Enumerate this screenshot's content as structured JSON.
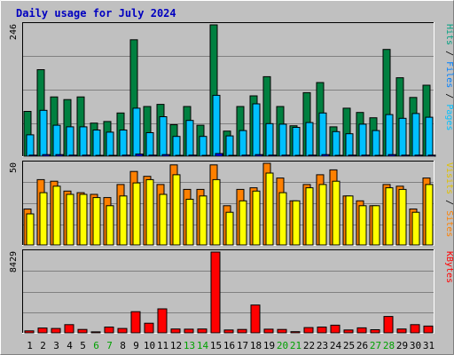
{
  "chart_data": {
    "type": "bar",
    "title": "Daily usage for July 2024",
    "categories": [
      "1",
      "2",
      "3",
      "4",
      "5",
      "6",
      "7",
      "8",
      "9",
      "10",
      "11",
      "12",
      "13",
      "14",
      "15",
      "16",
      "17",
      "18",
      "19",
      "20",
      "21",
      "22",
      "23",
      "24",
      "25",
      "26",
      "27",
      "28",
      "29",
      "30",
      "31"
    ],
    "weekend_days": [
      "6",
      "7",
      "13",
      "14",
      "20",
      "21",
      "27",
      "28"
    ],
    "panels": [
      {
        "id": "hits",
        "max_label": "246",
        "ylim": [
          0,
          246
        ],
        "grid": true,
        "legend": [
          "Pages",
          "Files",
          "Hits"
        ],
        "series": [
          {
            "name": "Hits",
            "color": "#008040",
            "values": [
              84,
              162,
              111,
              106,
              111,
              62,
              65,
              81,
              218,
              93,
              97,
              59,
              93,
              58,
              246,
              47,
              93,
              113,
              149,
              93,
              57,
              119,
              138,
              55,
              90,
              82,
              72,
              200,
              147,
              110,
              133
            ]
          },
          {
            "name": "Files",
            "color": "#00c0ff",
            "values": [
              40,
              86,
              58,
              55,
              55,
              49,
              45,
              49,
              90,
              44,
              74,
              37,
              67,
              37,
              114,
              38,
              48,
              98,
              61,
              60,
              54,
              63,
              81,
              46,
              42,
              60,
              48,
              78,
              71,
              80,
              73
            ]
          },
          {
            "name": "Pages",
            "color": "#0000ff",
            "values": [
              2,
              3,
              3,
              2,
              2,
              1,
              1,
              2,
              4,
              2,
              3,
              1,
              2,
              1,
              5,
              1,
              2,
              3,
              2,
              2,
              1,
              2,
              3,
              1,
              2,
              2,
              1,
              3,
              2,
              2,
              2
            ]
          }
        ]
      },
      {
        "id": "visits",
        "max_label": "50",
        "ylim": [
          0,
          50
        ],
        "grid": true,
        "legend": [
          "Sites",
          "Visits"
        ],
        "series": [
          {
            "name": "Visits",
            "color": "#ff8000",
            "values": [
              22,
              40,
              39,
              33,
              32,
              31,
              29,
              37,
              45,
              42,
              37,
              49,
              34,
              34,
              49,
              24,
              34,
              35,
              50,
              41,
              27,
              37,
              43,
              46,
              30,
              27,
              24,
              37,
              36,
              22,
              41
            ]
          },
          {
            "name": "Sites",
            "color": "#ffff00",
            "values": [
              19,
              32,
              36,
              31,
              31,
              29,
              24,
              30,
              38,
              40,
              31,
              43,
              28,
              30,
              40,
              20,
              27,
              33,
              44,
              32,
              27,
              35,
              37,
              39,
              30,
              24,
              24,
              35,
              34,
              20,
              37
            ]
          }
        ]
      },
      {
        "id": "kbytes",
        "max_label": "8429",
        "ylim": [
          0,
          8429
        ],
        "grid": true,
        "legend": [
          "KBytes"
        ],
        "series": [
          {
            "name": "KBytes",
            "color": "#ff0000",
            "values": [
              200,
              500,
              450,
              850,
              350,
              100,
              600,
              450,
              2200,
              1000,
              2500,
              400,
              380,
              400,
              8429,
              300,
              350,
              2900,
              380,
              350,
              120,
              550,
              600,
              800,
              300,
              520,
              320,
              1700,
              400,
              850,
              700
            ]
          }
        ]
      }
    ]
  }
}
